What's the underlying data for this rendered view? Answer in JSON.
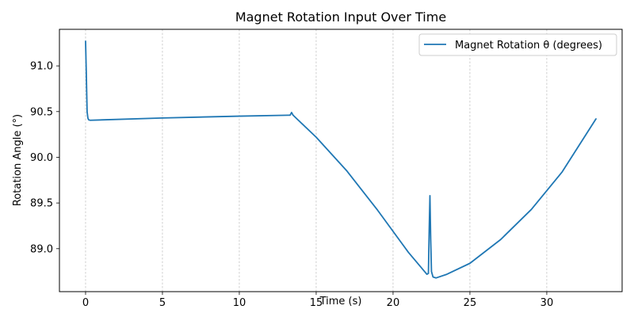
{
  "chart_data": {
    "type": "line",
    "title": "Magnet Rotation Input Over Time",
    "xlabel": "Time (s)",
    "ylabel": "Rotation Angle (°)",
    "xlim": [
      -1.7,
      34.9
    ],
    "ylim": [
      88.53,
      91.4
    ],
    "x_ticks": [
      0,
      5,
      10,
      15,
      20,
      25,
      30
    ],
    "x_tick_labels": [
      "0",
      "5",
      "10",
      "15",
      "20",
      "25",
      "30"
    ],
    "y_ticks": [
      89.0,
      89.5,
      90.0,
      90.5,
      91.0
    ],
    "y_tick_labels": [
      "89.0",
      "89.5",
      "90.0",
      "90.5",
      "91.0"
    ],
    "grid": "vertical dashed",
    "legend": "top-right",
    "series": [
      {
        "name": "Magnet Rotation θ (degrees)",
        "color": "#1f77b4",
        "x": [
          0,
          0.05,
          0.1,
          0.15,
          0.2,
          0.3,
          5,
          10,
          13.2,
          13.3,
          13.4,
          13.5,
          15,
          17,
          19,
          21,
          22,
          22.2,
          22.3,
          22.35,
          22.4,
          22.45,
          22.5,
          22.6,
          22.8,
          23.5,
          25,
          27,
          29,
          31,
          33.2
        ],
        "y": [
          91.27,
          90.9,
          90.5,
          90.43,
          90.41,
          90.405,
          90.43,
          90.45,
          90.46,
          90.46,
          90.49,
          90.46,
          90.22,
          89.85,
          89.42,
          88.96,
          88.76,
          88.72,
          88.73,
          89.2,
          89.58,
          89.1,
          88.75,
          88.69,
          88.68,
          88.72,
          88.84,
          89.1,
          89.43,
          89.84,
          90.42
        ]
      }
    ]
  }
}
